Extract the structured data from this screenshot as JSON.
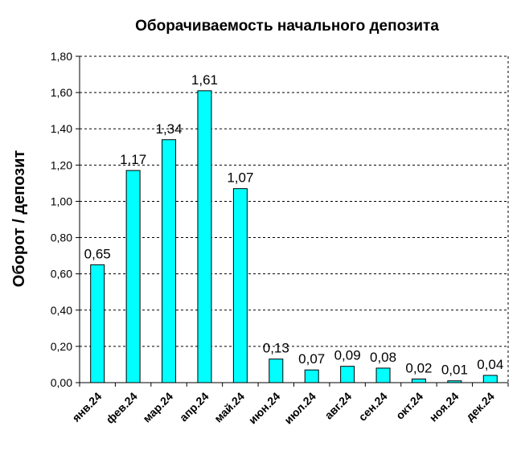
{
  "chart_data": {
    "type": "bar",
    "title": "Оборачиваемость начального депозита",
    "ylabel": "Оборот / депозит",
    "xlabel": "",
    "categories": [
      "янв.24",
      "фев.24",
      "мар.24",
      "апр.24",
      "май.24",
      "июн.24",
      "июл.24",
      "авг.24",
      "сен.24",
      "окт.24",
      "ноя.24",
      "дек.24"
    ],
    "values": [
      0.65,
      1.17,
      1.34,
      1.61,
      1.07,
      0.13,
      0.07,
      0.09,
      0.08,
      0.02,
      0.01,
      0.04
    ],
    "value_labels": [
      "0,65",
      "1,17",
      "1,34",
      "1,61",
      "1,07",
      "0,13",
      "0,07",
      "0,09",
      "0,08",
      "0,02",
      "0,01",
      "0,04"
    ],
    "ylim": [
      0,
      1.8
    ],
    "yticks": [
      0,
      0.2,
      0.4,
      0.6,
      0.8,
      1.0,
      1.2,
      1.4,
      1.6,
      1.8
    ],
    "ytick_labels": [
      "0,00",
      "0,20",
      "0,40",
      "0,60",
      "0,80",
      "1,00",
      "1,20",
      "1,40",
      "1,60",
      "1,80"
    ],
    "grid": true,
    "legend": "none",
    "bar_color": "#00FFFF",
    "bar_edge_color": "#000000"
  }
}
